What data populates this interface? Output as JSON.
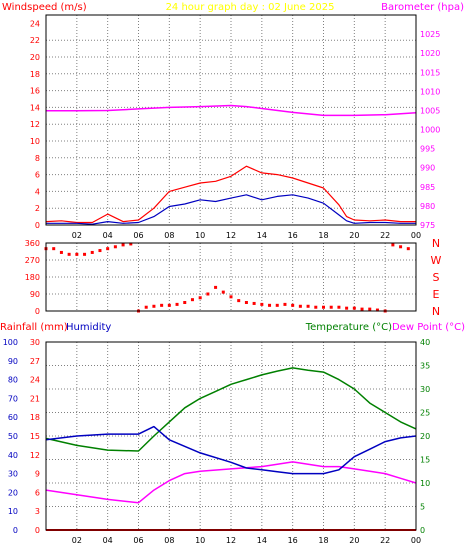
{
  "colors": {
    "background": "#ffffff",
    "grid": "#808080",
    "frame": "#000000",
    "wind_axis": "#ff0000",
    "baro_axis": "#ff00ff",
    "title": "#ffff00",
    "rain": "#ff0000",
    "humidity": "#0000c0",
    "temperature": "#008000",
    "dew_point": "#ff00ff",
    "marker": "#e8e800"
  },
  "header": {
    "windspeed_label": "Windspeed (m/s)",
    "title": "24 hour graph day : 02 June 2025",
    "barometer_label": "Barometer (hpa)"
  },
  "wind_panel": {
    "ylim": [
      0,
      25
    ],
    "left_ticks": [
      "0",
      "2",
      "4",
      "6",
      "8",
      "10",
      "12",
      "14",
      "16",
      "18",
      "20",
      "22",
      "24"
    ],
    "right_ticks": [
      "975",
      "980",
      "985",
      "990",
      "995",
      "1000",
      "1005",
      "1010",
      "1015",
      "1020",
      "1025"
    ],
    "x_ticks": [
      "02",
      "04",
      "06",
      "08",
      "10",
      "12",
      "14",
      "16",
      "18",
      "20",
      "22",
      "00"
    ]
  },
  "direction_panel": {
    "left_ticks": [
      "0",
      "90",
      "180",
      "270",
      "360"
    ],
    "right_labels": [
      "N",
      "E",
      "S",
      "W",
      "N"
    ]
  },
  "lower_header": {
    "rainfall_label": "Rainfall (mm)",
    "humidity_label": "Humidity",
    "temperature_label": "Temperature (°C)",
    "dew_point_label": "Dew Point (°C)"
  },
  "lower_panel": {
    "humidity_ticks": [
      "0",
      "10",
      "20",
      "30",
      "40",
      "50",
      "60",
      "70",
      "80",
      "90",
      "100"
    ],
    "rain_ticks": [
      "0",
      "3",
      "6",
      "9",
      "12",
      "15",
      "18",
      "21",
      "24",
      "27",
      "30"
    ],
    "temp_ticks": [
      "0",
      "5",
      "10",
      "15",
      "20",
      "25",
      "30",
      "35",
      "40"
    ],
    "x_ticks": [
      "02",
      "04",
      "06",
      "08",
      "10",
      "12",
      "14",
      "16",
      "18",
      "20",
      "22",
      "00"
    ]
  },
  "chart_data": [
    {
      "type": "line",
      "title": "24 hour graph day : 02 June 2025",
      "x_unit": "hours",
      "xlim": [
        0,
        24
      ],
      "series": [
        {
          "name": "Windspeed (m/s)",
          "axis": "left",
          "ylim": [
            0,
            25
          ],
          "x": [
            0,
            1,
            2,
            3,
            4,
            5,
            6,
            7,
            8,
            9,
            10,
            11,
            12,
            13,
            14,
            15,
            16,
            17,
            18,
            19,
            19.5,
            20,
            21,
            22,
            23,
            24
          ],
          "values": [
            0.2,
            0.2,
            0.2,
            0.1,
            0.4,
            0.2,
            0.3,
            1.0,
            2.2,
            2.5,
            3.0,
            2.8,
            3.2,
            3.6,
            3.0,
            3.4,
            3.6,
            3.2,
            2.6,
            1.2,
            0.5,
            0.2,
            0.3,
            0.3,
            0.2,
            0.2
          ]
        },
        {
          "name": "Wind gust (m/s)",
          "axis": "left",
          "ylim": [
            0,
            25
          ],
          "x": [
            0,
            1,
            2,
            3,
            4,
            5,
            6,
            7,
            8,
            9,
            10,
            11,
            12,
            13,
            14,
            15,
            16,
            17,
            18,
            19,
            19.5,
            20,
            21,
            22,
            23,
            24
          ],
          "values": [
            0.4,
            0.5,
            0.3,
            0.3,
            1.3,
            0.4,
            0.6,
            2.0,
            4.0,
            4.5,
            5.0,
            5.2,
            5.8,
            7.0,
            6.2,
            6.0,
            5.6,
            5.0,
            4.4,
            2.4,
            1.0,
            0.6,
            0.5,
            0.6,
            0.4,
            0.4
          ]
        },
        {
          "name": "Barometer (hpa)",
          "axis": "right",
          "ylim": [
            975,
            1030
          ],
          "x": [
            0,
            2,
            4,
            6,
            8,
            10,
            12,
            13,
            14,
            16,
            18,
            20,
            22,
            24
          ],
          "values": [
            1004.9,
            1004.9,
            1005.0,
            1005.4,
            1005.8,
            1006.0,
            1006.3,
            1006.0,
            1005.5,
            1004.5,
            1003.7,
            1003.7,
            1003.9,
            1004.4
          ]
        }
      ]
    },
    {
      "type": "scatter",
      "title": "",
      "x_unit": "hours",
      "xlim": [
        0,
        24
      ],
      "ylim": [
        0,
        360
      ],
      "series": [
        {
          "name": "",
          "x": [
            0,
            0.5,
            1,
            1.5,
            2,
            2.5,
            3,
            3.5,
            4,
            4.5,
            5,
            5.5,
            6,
            6.5,
            7,
            7.5,
            8,
            8.5,
            9,
            9.5,
            10,
            10.5,
            11,
            11.5,
            12,
            12.5,
            13,
            13.5,
            14,
            14.5,
            15,
            15.5,
            16,
            16.5,
            17,
            17.5,
            18,
            18.5,
            19,
            19.5,
            20,
            20.5,
            21,
            21.5,
            22,
            22.5,
            23,
            23.5
          ],
          "values": [
            330,
            330,
            310,
            300,
            300,
            300,
            310,
            320,
            330,
            340,
            350,
            355,
            0,
            20,
            25,
            30,
            30,
            35,
            45,
            60,
            70,
            90,
            125,
            100,
            75,
            55,
            45,
            40,
            35,
            30,
            30,
            35,
            30,
            25,
            25,
            20,
            20,
            20,
            20,
            15,
            15,
            10,
            10,
            5,
            0,
            350,
            340,
            330
          ]
        }
      ]
    },
    {
      "type": "line",
      "title": "",
      "x_unit": "hours",
      "xlim": [
        0,
        24
      ],
      "series": [
        {
          "name": "Rainfall (mm)",
          "axis": "rain",
          "ylim": [
            0,
            30
          ],
          "x": [
            0,
            24
          ],
          "values": [
            0,
            0
          ]
        },
        {
          "name": "Humidity",
          "axis": "humidity",
          "ylim": [
            0,
            100
          ],
          "x": [
            0,
            2,
            4,
            6,
            7,
            8,
            10,
            12,
            13,
            14,
            15,
            16,
            17,
            18,
            19,
            20,
            21,
            22,
            23,
            24
          ],
          "values": [
            48,
            50,
            51,
            51,
            55,
            48,
            41,
            36,
            33,
            32,
            31,
            30,
            30,
            30,
            32,
            39,
            43,
            47,
            49,
            50
          ]
        },
        {
          "name": "Temperature (°C)",
          "axis": "temp",
          "ylim": [
            0,
            40
          ],
          "x": [
            0,
            2,
            4,
            6,
            7,
            8,
            9,
            10,
            11,
            12,
            13,
            14,
            15,
            16,
            17,
            18,
            19,
            20,
            21,
            22,
            23,
            24
          ],
          "values": [
            19.5,
            18,
            17,
            16.8,
            20,
            23,
            26,
            28,
            29.5,
            31,
            32,
            33,
            33.8,
            34.5,
            34,
            33.6,
            32,
            30,
            27,
            25,
            23,
            21.5
          ]
        },
        {
          "name": "Dew Point (°C)",
          "axis": "temp",
          "ylim": [
            0,
            40
          ],
          "x": [
            0,
            2,
            4,
            6,
            7,
            8,
            9,
            10,
            12,
            14,
            15,
            16,
            17,
            18,
            19,
            20,
            21,
            22,
            23,
            24
          ],
          "values": [
            8.5,
            7.5,
            6.5,
            5.8,
            8.5,
            10.5,
            12,
            12.5,
            13,
            13.5,
            14,
            14.5,
            14,
            13.5,
            13.5,
            13,
            12.5,
            12,
            11,
            10
          ]
        }
      ]
    }
  ]
}
